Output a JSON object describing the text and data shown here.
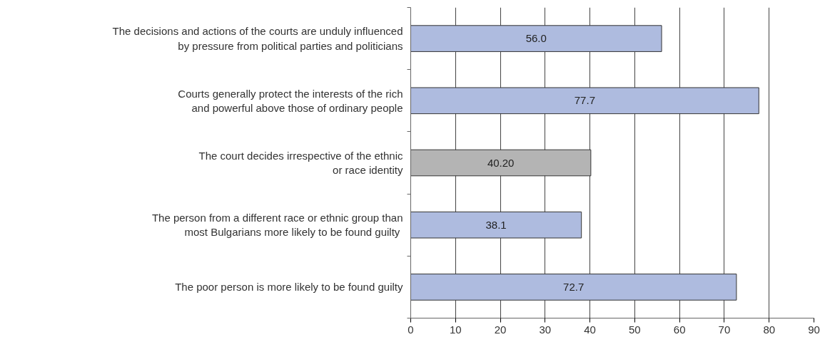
{
  "chart_data": {
    "type": "bar",
    "orientation": "horizontal",
    "categories": [
      "The decisions and actions of the courts are unduly influenced\nby pressure from political parties and politicians",
      "Courts generally protect the interests of the rich\nand powerful above those of ordinary people",
      "The court decides irrespective of the ethnic\nor race identity",
      "The person from a different race or ethnic group than\nmost Bulgarians more likely to be found  guilty",
      "The poor person is more likely to be found guilty"
    ],
    "values": [
      56.0,
      77.7,
      40.2,
      38.1,
      72.7
    ],
    "colors": [
      "#aebbdf",
      "#aebbdf",
      "#b4b4b4",
      "#aebbdf",
      "#aebbdf"
    ],
    "value_labels": [
      "56.0",
      "77.7",
      "40.20",
      "38.1",
      "72.7"
    ],
    "xlim": [
      0,
      90
    ],
    "xticks": [
      0,
      10,
      20,
      30,
      40,
      50,
      60,
      70,
      80,
      90
    ],
    "grid": "x"
  }
}
